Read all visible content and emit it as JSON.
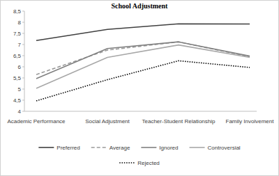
{
  "chart_data": {
    "type": "line",
    "title": "School Adjustment",
    "categories": [
      "Academic Performance",
      "Social Adjustment",
      "Teacher-Student Relationship",
      "Family Involvement"
    ],
    "series": [
      {
        "name": "Preferred",
        "color": "#404040",
        "line_style": "solid",
        "values": [
          7.18,
          7.68,
          7.93,
          7.92
        ]
      },
      {
        "name": "Average",
        "color": "#9a9a9a",
        "line_style": "dashed",
        "values": [
          5.65,
          6.75,
          7.12,
          6.45
        ]
      },
      {
        "name": "Ignored",
        "color": "#808080",
        "line_style": "solid",
        "values": [
          5.47,
          6.82,
          7.12,
          6.48
        ]
      },
      {
        "name": "Controversial",
        "color": "#a8a8a8",
        "line_style": "solid",
        "values": [
          5.03,
          6.42,
          6.98,
          6.42
        ]
      },
      {
        "name": "Rejected",
        "color": "#000000",
        "line_style": "dotted",
        "values": [
          4.47,
          5.42,
          6.27,
          5.97
        ]
      }
    ],
    "ylim": [
      4,
      8.5
    ],
    "yticks": [
      4,
      {
        "value": 4.5,
        "label": "4,5"
      },
      5,
      {
        "value": 5.5,
        "label": "5,5"
      },
      6,
      {
        "value": 6.5,
        "label": "6,5"
      },
      7,
      {
        "value": 7.5,
        "label": "7,5"
      },
      8,
      {
        "value": 8.5,
        "label": "8,5"
      }
    ],
    "grid": false,
    "legend": "bottom"
  }
}
